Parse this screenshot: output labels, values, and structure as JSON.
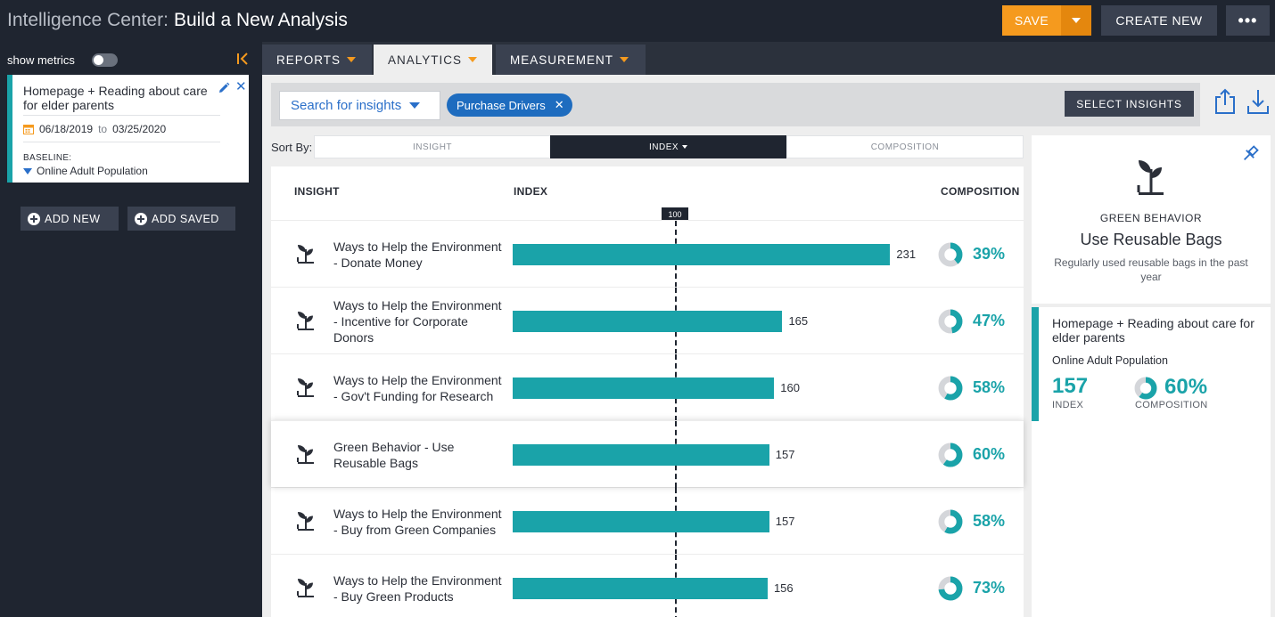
{
  "header": {
    "app_name": "Intelligence Center:",
    "page_title": "Build a New Analysis",
    "save_label": "SAVE",
    "create_new_label": "CREATE NEW",
    "more_label": "•••",
    "colors": {
      "accent": "#f59a1e",
      "dark": "#1f2530",
      "teal": "#1aa3a9",
      "blue": "#2a6fc9"
    }
  },
  "sidebar": {
    "show_metrics_label": "show metrics",
    "show_metrics_on": false,
    "card": {
      "title": "Homepage + Reading about care for elder parents",
      "date_from": "06/18/2019",
      "date_to_word": "to",
      "date_to": "03/25/2020",
      "baseline_label": "BASELINE:",
      "baseline_value": "Online Adult Population"
    },
    "add_new_label": "ADD NEW",
    "add_saved_label": "ADD SAVED"
  },
  "tabs": [
    {
      "label": "REPORTS",
      "active": false
    },
    {
      "label": "ANALYTICS",
      "active": true
    },
    {
      "label": "MEASUREMENT",
      "active": false
    }
  ],
  "search": {
    "select_label": "Search for insights",
    "chip_label": "Purchase Drivers",
    "chip_close": "✕",
    "select_insights_label": "SELECT INSIGHTS"
  },
  "sort": {
    "label": "Sort By:",
    "options": [
      "INSIGHT",
      "INDEX",
      "COMPOSITION"
    ],
    "active": "INDEX"
  },
  "table": {
    "headers": {
      "insight": "INSIGHT",
      "index": "INDEX",
      "composition": "COMPOSITION"
    },
    "baseline_marker": "100",
    "rows": [
      {
        "label": "Ways to Help the Environment - Donate Money",
        "index": 231,
        "index_text": "231",
        "composition": 39,
        "composition_text": "39%"
      },
      {
        "label": "Ways to Help the Environment - Incentive for Corporate Donors",
        "index": 165,
        "index_text": "165",
        "composition": 47,
        "composition_text": "47%"
      },
      {
        "label": "Ways to Help the Environment - Gov't Funding for Research",
        "index": 160,
        "index_text": "160",
        "composition": 58,
        "composition_text": "58%"
      },
      {
        "label": "Green Behavior - Use Reusable Bags",
        "index": 157,
        "index_text": "157",
        "composition": 60,
        "composition_text": "60%"
      },
      {
        "label": "Ways to Help the Environment - Buy from Green Companies",
        "index": 157,
        "index_text": "157",
        "composition": 58,
        "composition_text": "58%"
      },
      {
        "label": "Ways to Help the Environment - Buy Green Products",
        "index": 156,
        "index_text": "156",
        "composition": 73,
        "composition_text": "73%"
      }
    ]
  },
  "detail": {
    "category": "GREEN BEHAVIOR",
    "title": "Use Reusable Bags",
    "description": "Regularly used reusable bags in the past year",
    "audience_title": "Homepage + Reading about care for elder parents",
    "baseline": "Online Adult Population",
    "index_value": "157",
    "index_label": "INDEX",
    "composition_value": 60,
    "composition_text": "60%",
    "composition_label": "COMPOSITION"
  }
}
